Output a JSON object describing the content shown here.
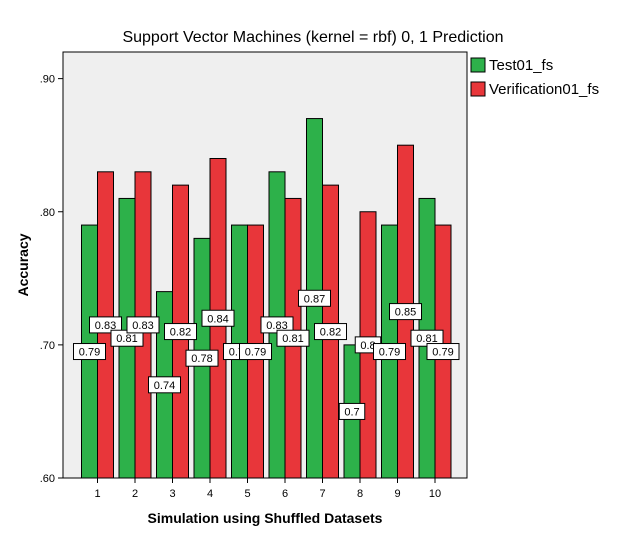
{
  "chart_data": {
    "type": "bar",
    "title": "Support Vector Machines (kernel = rbf) 0, 1 Prediction",
    "xlabel": "Simulation using Shuffled Datasets",
    "ylabel": "Accuracy",
    "categories": [
      "1",
      "2",
      "3",
      "4",
      "5",
      "6",
      "7",
      "8",
      "9",
      "10"
    ],
    "ylim": [
      0.6,
      0.92
    ],
    "yticks": [
      0.6,
      0.7,
      0.8,
      0.9
    ],
    "ytick_labels": [
      ".60",
      ".70",
      ".80",
      ".90"
    ],
    "grid": false,
    "legend_position": "top-right, outside plot",
    "series": [
      {
        "name": "Test01_fs",
        "color": "#2db14a",
        "values": [
          0.79,
          0.81,
          0.74,
          0.78,
          0.79,
          0.83,
          0.87,
          0.7,
          0.79,
          0.81
        ],
        "labels": [
          "0.79",
          "0.81",
          "0.74",
          "0.78",
          "0.79",
          "0.83",
          "0.87",
          "0.7",
          "0.79",
          "0.81"
        ]
      },
      {
        "name": "Verification01_fs",
        "color": "#e8363a",
        "values": [
          0.83,
          0.83,
          0.82,
          0.84,
          0.79,
          0.81,
          0.82,
          0.8,
          0.85,
          0.79
        ],
        "labels": [
          "0.83",
          "0.83",
          "0.82",
          "0.84",
          "0.79",
          "0.81",
          "0.82",
          "0.8",
          "0.85",
          "0.79"
        ]
      }
    ]
  }
}
